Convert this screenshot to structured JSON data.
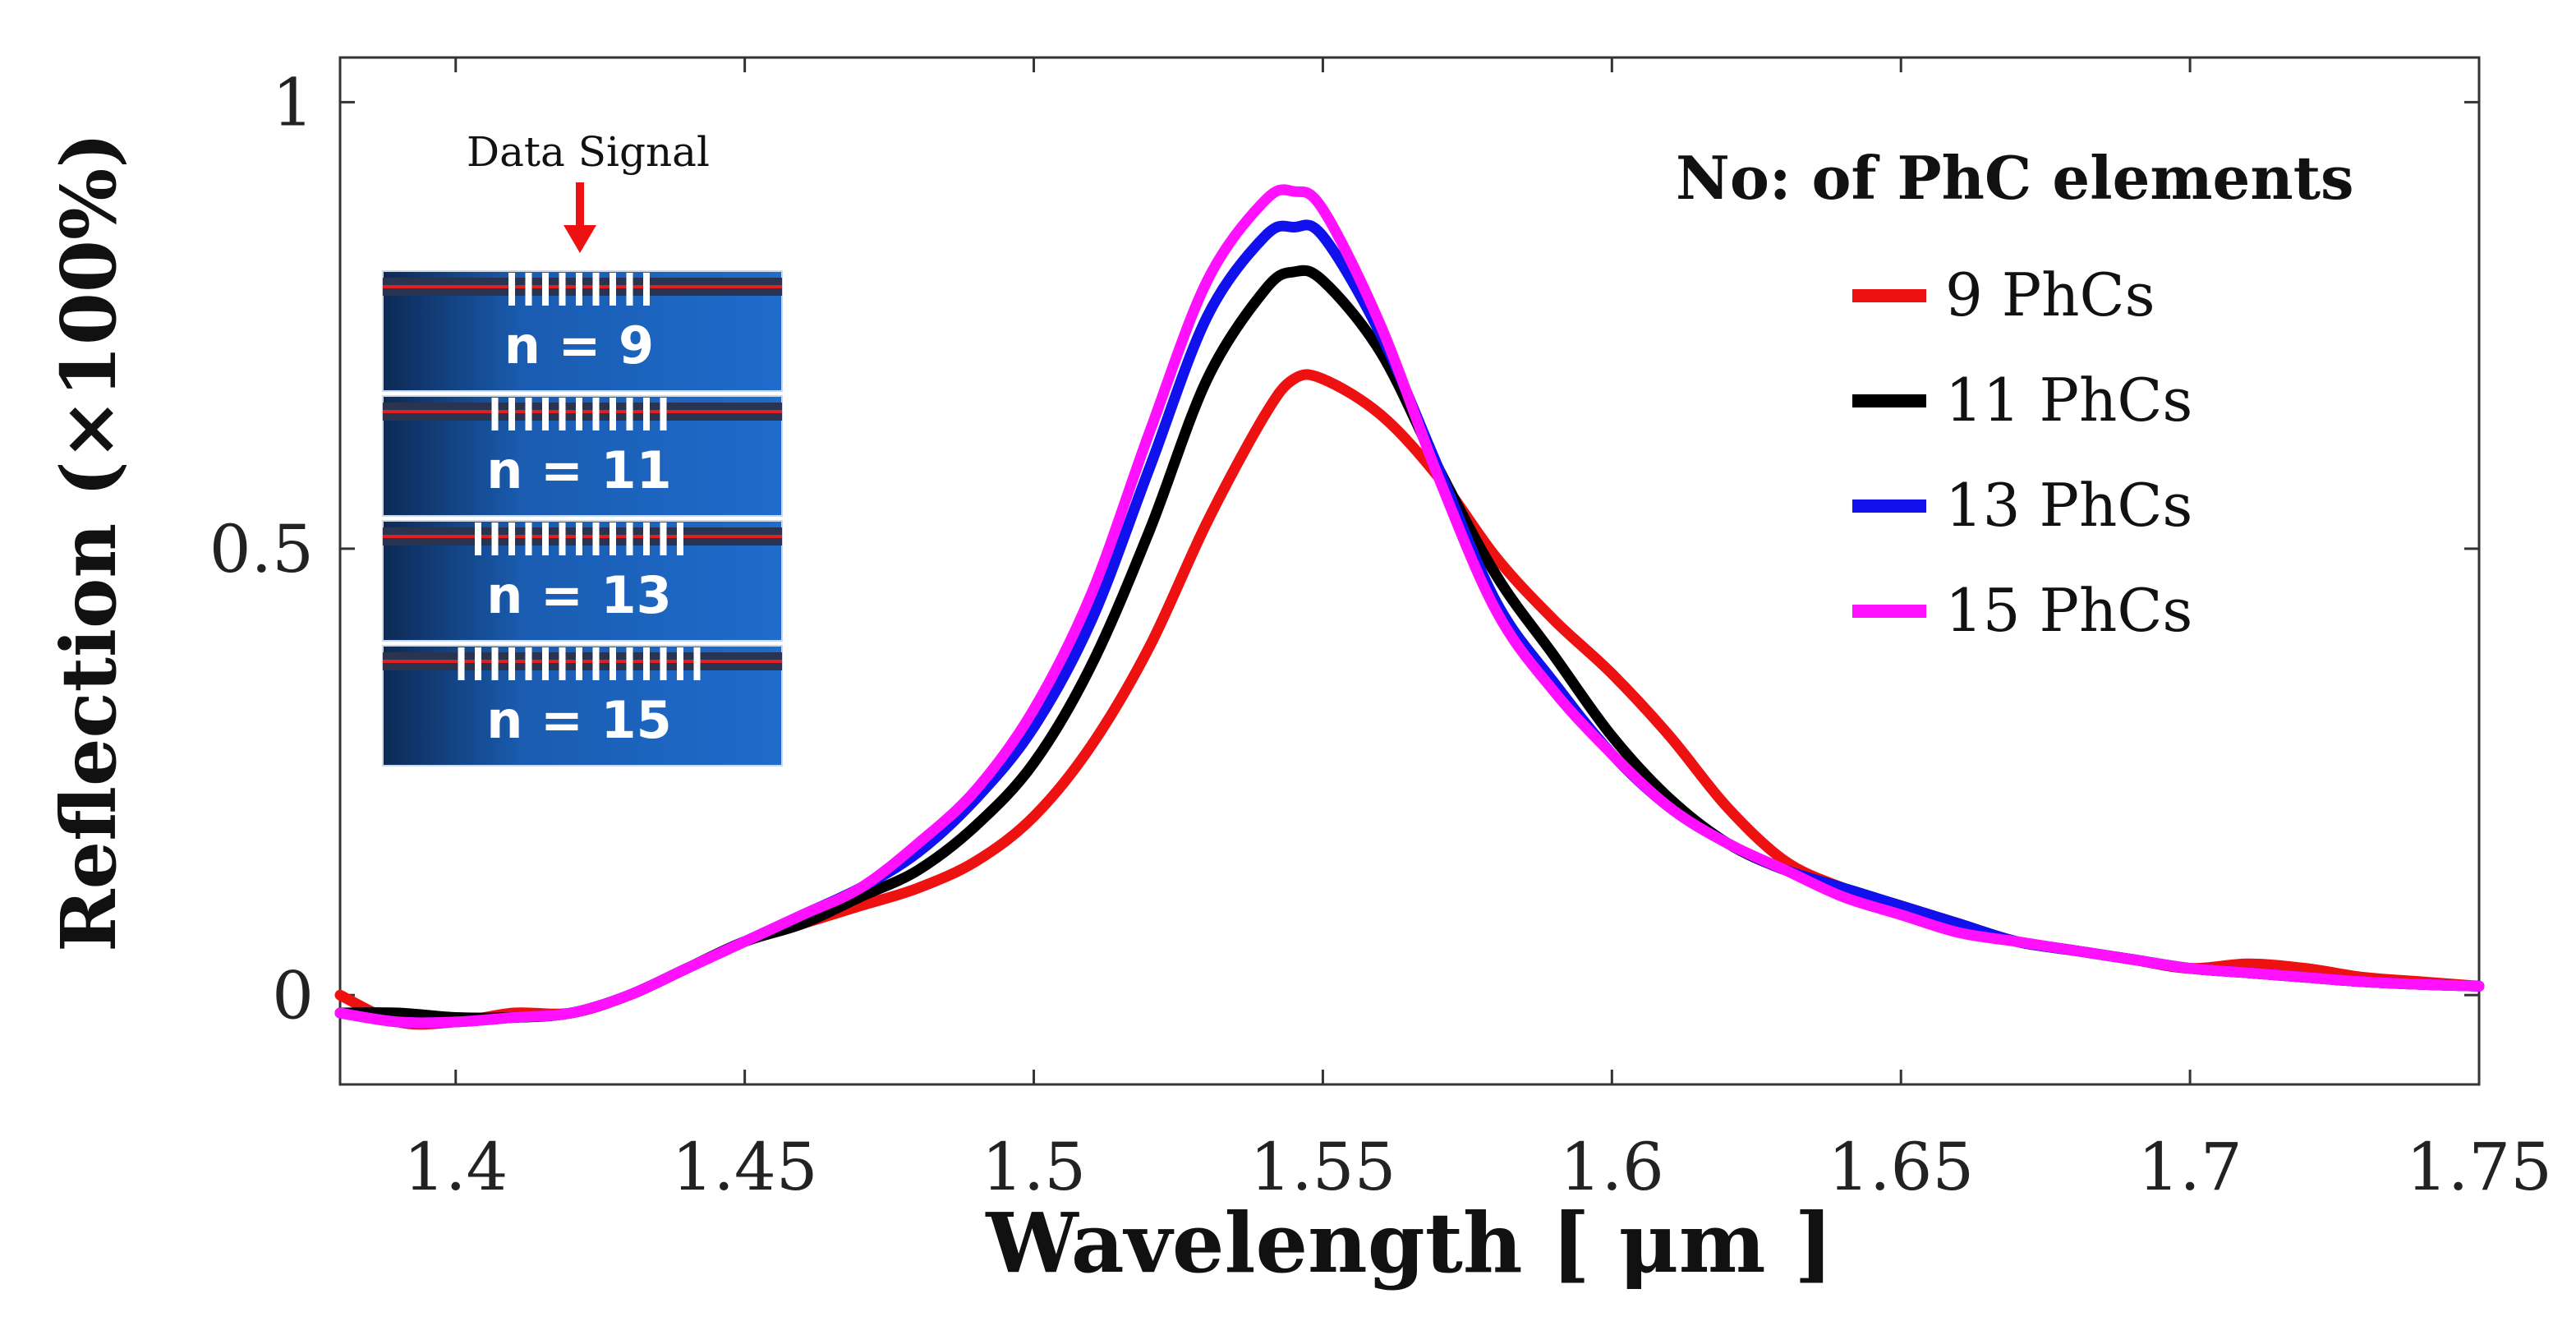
{
  "chart_data": {
    "type": "line",
    "title": "",
    "xlabel": "Wavelength [ μm ]",
    "ylabel": "Reflection (×100%)",
    "xlim": [
      1.38,
      1.75
    ],
    "ylim": [
      -0.1,
      1.05
    ],
    "x_ticks": [
      1.4,
      1.45,
      1.5,
      1.55,
      1.6,
      1.65,
      1.7,
      1.75
    ],
    "x_tick_labels": [
      "1.4",
      "1.45",
      "1.5",
      "1.55",
      "1.6",
      "1.65",
      "1.7",
      "1.75"
    ],
    "y_ticks": [
      0,
      0.5,
      1
    ],
    "y_tick_labels": [
      "0",
      "0.5",
      "1"
    ],
    "grid": false,
    "legend": {
      "title": "No: of PhC elements",
      "position": "top-right"
    },
    "x": [
      1.38,
      1.39,
      1.4,
      1.41,
      1.42,
      1.43,
      1.44,
      1.45,
      1.46,
      1.47,
      1.48,
      1.49,
      1.5,
      1.51,
      1.52,
      1.53,
      1.54,
      1.545,
      1.55,
      1.56,
      1.57,
      1.58,
      1.59,
      1.6,
      1.61,
      1.62,
      1.63,
      1.64,
      1.65,
      1.66,
      1.67,
      1.68,
      1.69,
      1.7,
      1.71,
      1.72,
      1.73,
      1.74,
      1.75
    ],
    "series": [
      {
        "name": "9  PhCs",
        "color": "#ee1111",
        "values": [
          0.0,
          -0.03,
          -0.03,
          -0.02,
          -0.02,
          0.0,
          0.03,
          0.06,
          0.08,
          0.1,
          0.12,
          0.15,
          0.2,
          0.28,
          0.39,
          0.53,
          0.65,
          0.69,
          0.69,
          0.65,
          0.58,
          0.49,
          0.42,
          0.36,
          0.29,
          0.21,
          0.15,
          0.12,
          0.1,
          0.08,
          0.06,
          0.05,
          0.04,
          0.03,
          0.035,
          0.03,
          0.02,
          0.015,
          0.01
        ]
      },
      {
        "name": "11 PhCs",
        "color": "#000000",
        "values": [
          -0.02,
          -0.02,
          -0.025,
          -0.025,
          -0.02,
          0.0,
          0.03,
          0.06,
          0.08,
          0.11,
          0.14,
          0.19,
          0.26,
          0.37,
          0.52,
          0.69,
          0.79,
          0.81,
          0.8,
          0.72,
          0.59,
          0.47,
          0.38,
          0.29,
          0.22,
          0.17,
          0.14,
          0.12,
          0.1,
          0.08,
          0.06,
          0.05,
          0.04,
          0.03,
          0.025,
          0.02,
          0.015,
          0.012,
          0.01
        ]
      },
      {
        "name": "13 PhCs",
        "color": "#1111ee",
        "values": [
          -0.02,
          -0.03,
          -0.03,
          -0.025,
          -0.02,
          0.0,
          0.03,
          0.06,
          0.09,
          0.12,
          0.16,
          0.22,
          0.3,
          0.42,
          0.59,
          0.76,
          0.85,
          0.86,
          0.85,
          0.74,
          0.59,
          0.44,
          0.35,
          0.27,
          0.21,
          0.17,
          0.14,
          0.12,
          0.1,
          0.08,
          0.06,
          0.05,
          0.04,
          0.03,
          0.025,
          0.02,
          0.015,
          0.012,
          0.01
        ]
      },
      {
        "name": "15 PhCs",
        "color": "#ff11ff",
        "values": [
          -0.02,
          -0.03,
          -0.03,
          -0.025,
          -0.02,
          0.0,
          0.03,
          0.06,
          0.09,
          0.12,
          0.17,
          0.23,
          0.32,
          0.45,
          0.63,
          0.8,
          0.89,
          0.9,
          0.88,
          0.75,
          0.58,
          0.43,
          0.34,
          0.27,
          0.21,
          0.17,
          0.14,
          0.11,
          0.09,
          0.07,
          0.06,
          0.05,
          0.04,
          0.03,
          0.025,
          0.02,
          0.015,
          0.012,
          0.01
        ]
      }
    ]
  },
  "inset": {
    "caption": "Data Signal",
    "panels": [
      {
        "label": "n = 9",
        "elements": 9
      },
      {
        "label": "n = 11",
        "elements": 11
      },
      {
        "label": "n = 13",
        "elements": 13
      },
      {
        "label": "n = 15",
        "elements": 15
      }
    ]
  }
}
